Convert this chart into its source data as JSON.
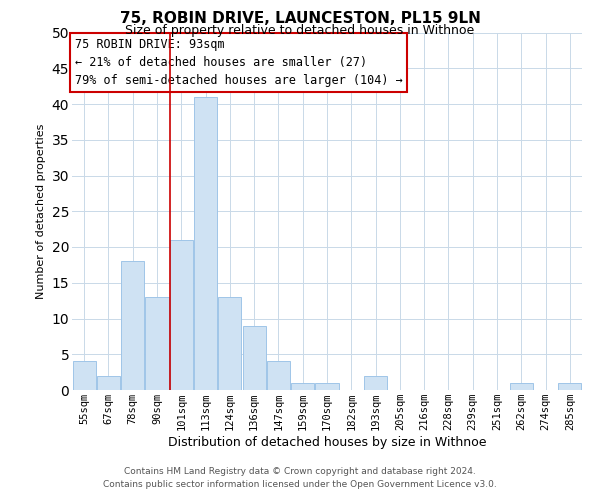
{
  "title": "75, ROBIN DRIVE, LAUNCESTON, PL15 9LN",
  "subtitle": "Size of property relative to detached houses in Withnoe",
  "xlabel": "Distribution of detached houses by size in Withnoe",
  "ylabel": "Number of detached properties",
  "bar_labels": [
    "55sqm",
    "67sqm",
    "78sqm",
    "90sqm",
    "101sqm",
    "113sqm",
    "124sqm",
    "136sqm",
    "147sqm",
    "159sqm",
    "170sqm",
    "182sqm",
    "193sqm",
    "205sqm",
    "216sqm",
    "228sqm",
    "239sqm",
    "251sqm",
    "262sqm",
    "274sqm",
    "285sqm"
  ],
  "bar_values": [
    4,
    2,
    18,
    13,
    21,
    41,
    13,
    9,
    4,
    1,
    1,
    0,
    2,
    0,
    0,
    0,
    0,
    0,
    1,
    0,
    1
  ],
  "bar_color": "#cfe2f3",
  "bar_edge_color": "#9fc5e8",
  "vline_x_index": 4,
  "ylim": [
    0,
    50
  ],
  "yticks": [
    0,
    5,
    10,
    15,
    20,
    25,
    30,
    35,
    40,
    45,
    50
  ],
  "annotation_line1": "75 ROBIN DRIVE: 93sqm",
  "annotation_line2": "← 21% of detached houses are smaller (27)",
  "annotation_line3": "79% of semi-detached houses are larger (104) →",
  "annotation_box_color": "#ffffff",
  "annotation_box_edge_color": "#cc0000",
  "footer_line1": "Contains HM Land Registry data © Crown copyright and database right 2024.",
  "footer_line2": "Contains public sector information licensed under the Open Government Licence v3.0.",
  "background_color": "#ffffff",
  "grid_color": "#c9d9e8",
  "title_fontsize": 11,
  "subtitle_fontsize": 9,
  "xlabel_fontsize": 9,
  "ylabel_fontsize": 8,
  "tick_fontsize": 7.5,
  "footer_fontsize": 6.5,
  "ann_fontsize": 8.5
}
